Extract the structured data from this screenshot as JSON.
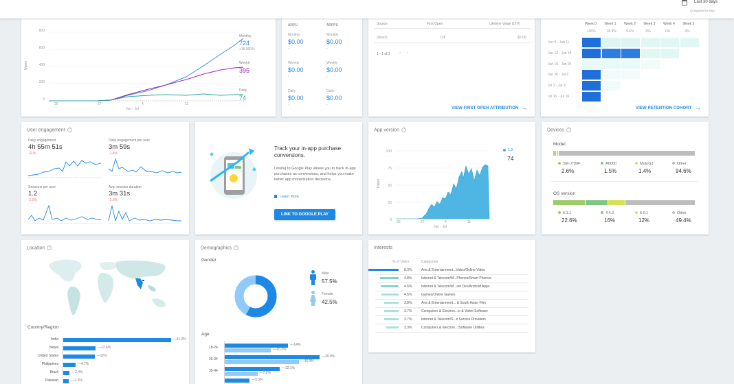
{
  "header": {
    "date_range": "Last 30 days",
    "compared": "Compared to May",
    "icon": "calendar-icon"
  },
  "active_users": {
    "y_ticks": [
      "800",
      "600",
      "400",
      "200",
      "0"
    ],
    "x_ticks": [
      "20",
      "27",
      "4",
      "11"
    ],
    "x_caption": "Jun - Jul",
    "y_axis_label": "Users",
    "monthly": {
      "label": "Monthly",
      "value": "724",
      "change": "+18,000%"
    },
    "weekly": {
      "label": "Weekly",
      "value": "395",
      "change": "-"
    },
    "daily": {
      "label": "Daily",
      "value": "74",
      "change": "-"
    },
    "colors": {
      "monthly": "#4285f4",
      "weekly": "#9c27b0",
      "daily": "#26a69a"
    }
  },
  "revenue": {
    "col1": "ARPU",
    "col2": "ARPPU",
    "rows": [
      {
        "label1": "Monthly",
        "value1": "$0.00",
        "label2": "Monthly",
        "value2": "$0.00"
      },
      {
        "label1": "Weekly",
        "value1": "$0.00",
        "label2": "Weekly",
        "value2": "$0.00"
      },
      {
        "label1": "Daily",
        "value1": "$0.00",
        "label2": "Daily",
        "value2": "$0.00"
      }
    ]
  },
  "attribution": {
    "headers": [
      "Source",
      "First Open",
      "Lifetime Value (LTV)"
    ],
    "row": {
      "source": "(direct)",
      "first_open": "728",
      "ltv": "$0.00"
    },
    "pagination": "1 - 1 of 1",
    "link": "VIEW FIRST OPEN ATTRIBUTION"
  },
  "retention": {
    "weeks": [
      "Week 0",
      "Week 1",
      "Week 2",
      "Week 3",
      "Week 4",
      "Week 5"
    ],
    "percents": [
      "100%",
      "18.9%",
      "9.6%",
      "0%",
      "0%",
      "0%"
    ],
    "rows": [
      "Jun 5 - Jun 11",
      "Jun 12 - Jun 18",
      "Jun 19 - Jun 25",
      "Jun 26 - Jul 2",
      "Jul 3 - Jul 9",
      "Jul 10 - Jul 16"
    ],
    "link": "VIEW RETENTION COHORT"
  },
  "engagement": {
    "title": "User engagement",
    "metrics": [
      {
        "label": "Daily engagement",
        "value": "4h 55m 51s",
        "change": "-11%"
      },
      {
        "label": "Daily engagement per user",
        "value": "3m 59s",
        "change": "-1.4%"
      },
      {
        "label": "Sessions per user",
        "value": "1.2",
        "change": "-1.5%"
      },
      {
        "label": "Avg. session duration",
        "value": "3m 31s",
        "change": "-3.6%"
      }
    ]
  },
  "iap": {
    "title": "Track your in-app purchase conversions.",
    "body": "Linking to Google Play allows you to track in-app purchases as conversions, and helps you make better app monetization decisions.",
    "learn_more": "Learn more",
    "button": "LINK TO GOOGLE PLAY"
  },
  "app_version": {
    "title": "App version",
    "y_ticks": [
      "100",
      "75",
      "50",
      "25",
      "0"
    ],
    "x_ticks": [
      "20",
      "27",
      "4",
      "11"
    ],
    "x_caption": "Jun - Jul",
    "y_axis_label": "Users",
    "legend_label": "1.0",
    "legend_value": "74"
  },
  "devices": {
    "title": "Devices",
    "model_label": "Model",
    "models": [
      {
        "name": "SM-J700F",
        "value": "2.6%",
        "color": "#9ccc65"
      },
      {
        "name": "A6000",
        "value": "1.5%",
        "color": "#81c784"
      },
      {
        "name": "MotoG3",
        "value": "1.4%",
        "color": "#d4e157"
      },
      {
        "name": "Other",
        "value": "94.6%",
        "color": "#bdbdbd"
      }
    ],
    "os_label": "OS version",
    "os": [
      {
        "name": "5.1.1",
        "value": "22.6%",
        "color": "#9ccc65"
      },
      {
        "name": "4.4.2",
        "value": "16%",
        "color": "#81c784"
      },
      {
        "name": "6.0.1",
        "value": "12%",
        "color": "#d4e157"
      },
      {
        "name": "Other",
        "value": "49.4%",
        "color": "#bdbdbd"
      }
    ]
  },
  "location": {
    "title": "Location",
    "subtitle": "Country/Region",
    "countries": [
      {
        "name": "India",
        "value": "41.2%",
        "pct": 41.2
      },
      {
        "name": "Nepal",
        "value": "12.4%",
        "pct": 12.4
      },
      {
        "name": "United States",
        "value": "12%",
        "pct": 12
      },
      {
        "name": "Philippines",
        "value": "4.7%",
        "pct": 4.7
      },
      {
        "name": "Brazil",
        "value": "2.4%",
        "pct": 2.4
      },
      {
        "name": "Pakistan",
        "value": "2.2%",
        "pct": 2.2
      }
    ]
  },
  "demographics": {
    "title": "Demographics",
    "gender_label": "Gender",
    "male_label": "Male",
    "male_value": "57.5%",
    "male_pct": 57.5,
    "female_label": "Female",
    "female_value": "42.5%",
    "female_pct": 42.5,
    "age_label": "Age",
    "ages": [
      {
        "label": "18-24",
        "a": "14%",
        "b": "10.2%",
        "av": 14,
        "bv": 10.2
      },
      {
        "label": "25-34",
        "a": "20.9%",
        "b": "16.3%",
        "av": 20.9,
        "bv": 16.3
      },
      {
        "label": "35-44",
        "a": "12.1%",
        "b": "7.2%",
        "av": 12.1,
        "bv": 7.2
      },
      {
        "label": "",
        "a": "5.5%",
        "b": "",
        "av": 5.5,
        "bv": 0
      }
    ]
  },
  "interests": {
    "title": "Interests",
    "col1": "% of Users",
    "col2": "Categories",
    "rows": [
      {
        "value": "8.3%",
        "name": "Arts & Entertainment...Video/Online Video",
        "pct": 8.3
      },
      {
        "value": "4.8%",
        "name": "Internet & Telecom/M...Phones/Smart Phones",
        "pct": 4.8
      },
      {
        "value": "4.6%",
        "name": "Internet & Telecom/M...oid Dev/Android Apps",
        "pct": 4.6
      },
      {
        "value": "4.5%",
        "name": "Games/Online Games",
        "pct": 4.5
      },
      {
        "value": "3.8%",
        "name": "Arts & Entertainment... & South Asian Film",
        "pct": 3.8
      },
      {
        "value": "3.7%",
        "name": "Computers & Electron...io & Video Software",
        "pct": 3.7
      },
      {
        "value": "3.7%",
        "name": "Internet & Telecom/S...e Service Providers",
        "pct": 3.7
      },
      {
        "value": "3.3%",
        "name": "Computers & Electron.../Software Utilities",
        "pct": 3.3
      }
    ]
  }
}
